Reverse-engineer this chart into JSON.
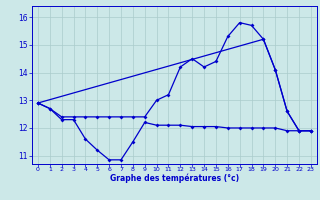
{
  "title": "Graphe des températures (°c)",
  "bg_color": "#cce8e8",
  "grid_color": "#aacccc",
  "line_color": "#0000cc",
  "xlim": [
    -0.5,
    23.5
  ],
  "ylim": [
    10.7,
    16.4
  ],
  "yticks": [
    11,
    12,
    13,
    14,
    15,
    16
  ],
  "xticks": [
    0,
    1,
    2,
    3,
    4,
    5,
    6,
    7,
    8,
    9,
    10,
    11,
    12,
    13,
    14,
    15,
    16,
    17,
    18,
    19,
    20,
    21,
    22,
    23
  ],
  "series1_x": [
    0,
    1,
    2,
    3,
    4,
    5,
    6,
    7,
    8,
    9,
    10,
    11,
    12,
    13,
    14,
    15,
    16,
    17,
    18,
    19,
    20,
    21,
    22,
    23
  ],
  "series1_y": [
    12.9,
    12.7,
    12.3,
    12.3,
    11.6,
    11.2,
    10.85,
    10.85,
    11.5,
    12.2,
    12.1,
    12.1,
    12.1,
    12.05,
    12.05,
    12.05,
    12.0,
    12.0,
    12.0,
    12.0,
    12.0,
    11.9,
    11.9,
    11.9
  ],
  "series2_x": [
    0,
    1,
    2,
    3,
    4,
    5,
    6,
    7,
    8,
    9,
    10,
    11,
    12,
    13,
    14,
    15,
    16,
    17,
    18,
    19,
    20,
    21,
    22,
    23
  ],
  "series2_y": [
    12.9,
    12.7,
    12.4,
    12.4,
    12.4,
    12.4,
    12.4,
    12.4,
    12.4,
    12.4,
    13.0,
    13.2,
    14.2,
    14.5,
    14.2,
    14.4,
    15.3,
    15.8,
    15.7,
    15.2,
    14.1,
    12.6,
    11.9,
    11.9
  ],
  "series3_x": [
    0,
    19,
    20,
    21,
    22,
    23
  ],
  "series3_y": [
    12.9,
    15.2,
    14.1,
    12.6,
    11.9,
    11.9
  ]
}
